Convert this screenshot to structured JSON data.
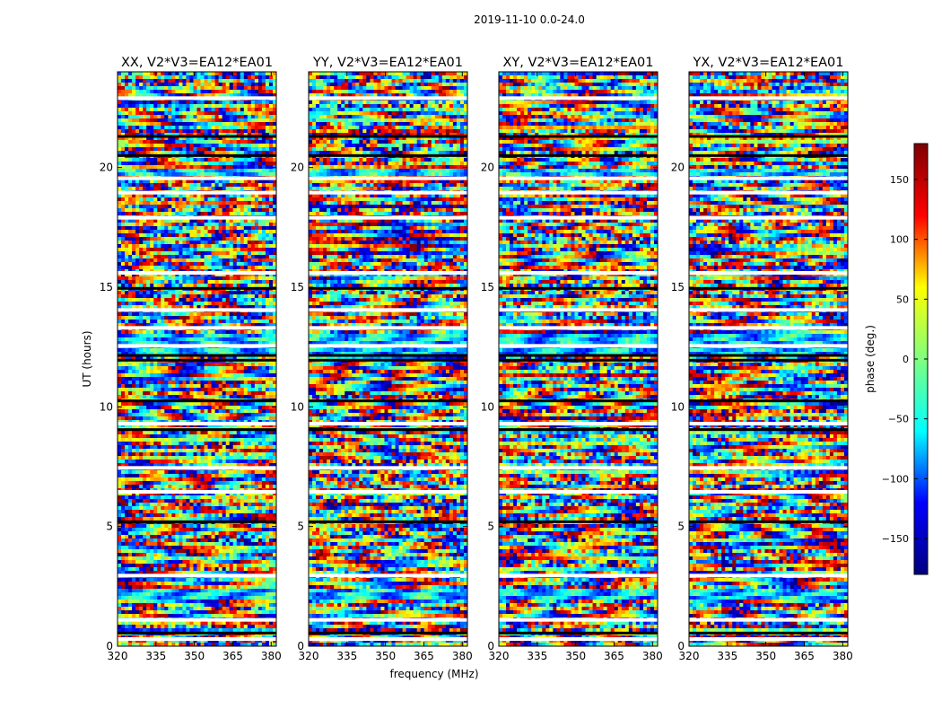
{
  "figure": {
    "suptitle": "2019-11-10 0.0-24.0",
    "ylabel": "UT (hours)",
    "xlabel": "frequency (MHz)"
  },
  "chart_data": {
    "type": "heatmap",
    "description_scale": "phase",
    "x_range": [
      320,
      382
    ],
    "y_range": [
      0,
      24
    ],
    "x_ticks": [
      320,
      335,
      350,
      365,
      380
    ],
    "y_ticks": [
      0,
      5,
      10,
      15,
      20
    ],
    "panels": [
      {
        "title": "XX, V2*V3=EA12*EA01",
        "polarization": "XX"
      },
      {
        "title": "YY, V2*V3=EA12*EA01",
        "polarization": "YY"
      },
      {
        "title": "XY, V2*V3=EA12*EA01",
        "polarization": "XY"
      },
      {
        "title": "YX, V2*V3=EA12*EA01",
        "polarization": "YX"
      }
    ],
    "colorbar": {
      "label": "phase (deg.)",
      "range": [
        -180,
        180
      ],
      "ticks": [
        150,
        100,
        50,
        0,
        -50,
        -100,
        -150
      ],
      "tick_labels": [
        "150",
        "100",
        "50",
        "0",
        "−50",
        "−100",
        "−150"
      ],
      "colormap": "jet",
      "colors": [
        "#00007f",
        "#0000ff",
        "#00ffff",
        "#7fff7f",
        "#ffff00",
        "#ff0000",
        "#7f0000"
      ]
    },
    "blank_bands_hours": [
      0.3,
      1.1,
      2.95,
      6.45,
      7.45,
      9.3,
      12.55,
      13.3,
      14.05,
      15.6,
      17.9,
      18.95,
      19.55,
      22.9
    ],
    "dark_bands_hours": [
      0.55,
      5.2,
      9.05,
      10.25,
      11.95,
      12.15,
      14.95,
      20.5,
      21.3
    ],
    "flat_bands_hours": [
      [
        2.0,
        2.4
      ],
      [
        12.2,
        13.0
      ],
      [
        19.6,
        20.0
      ]
    ]
  }
}
